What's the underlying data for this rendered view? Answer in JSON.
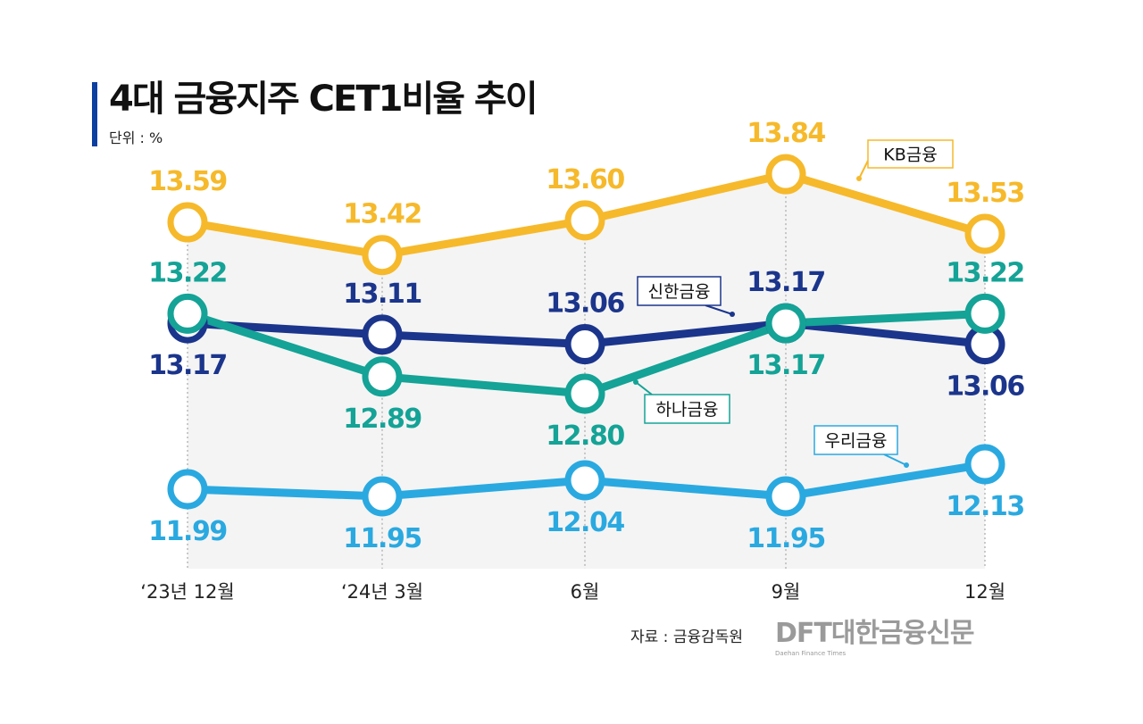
{
  "chart_data": {
    "type": "line",
    "title": "4대 금융지주 CET1비율 추이",
    "unit_label": "단위 : %",
    "categories": [
      "‘23년 12월",
      "‘24년 3월",
      "6월",
      "9월",
      "12월"
    ],
    "series": [
      {
        "name": "KB금융",
        "color": "#F6B92B",
        "values": [
          13.59,
          13.42,
          13.6,
          13.84,
          13.53
        ]
      },
      {
        "name": "신한금융",
        "color": "#1B358C",
        "values": [
          13.17,
          13.11,
          13.06,
          13.17,
          13.06
        ]
      },
      {
        "name": "하나금융",
        "color": "#14A396",
        "values": [
          13.22,
          12.89,
          12.8,
          13.17,
          13.22
        ]
      },
      {
        "name": "우리금융",
        "color": "#2AA9E0",
        "values": [
          11.99,
          11.95,
          12.04,
          11.95,
          12.13
        ]
      }
    ],
    "xlabel": "",
    "ylabel": "",
    "grid": false,
    "source": "자료 : 금융감독원"
  },
  "branding": {
    "logo": "DFT대한금융신문",
    "logo_sub": "Daehan Finance Times"
  }
}
